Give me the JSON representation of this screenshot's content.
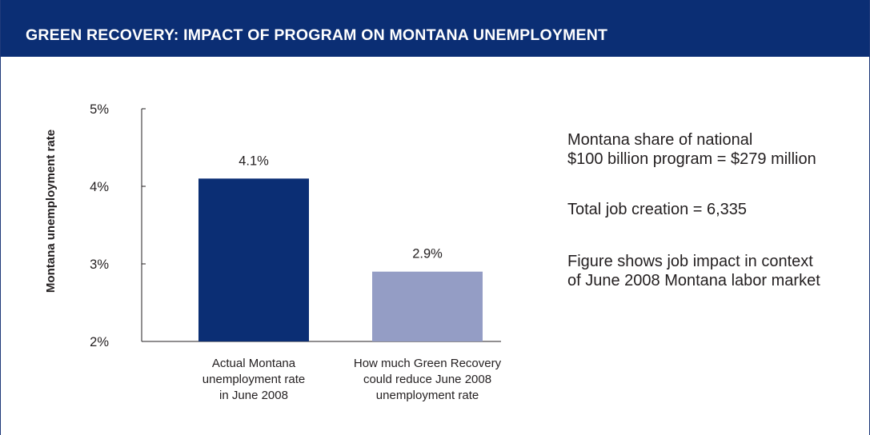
{
  "header": {
    "title": "GREEN RECOVERY: IMPACT OF PROGRAM ON MONTANA UNEMPLOYMENT"
  },
  "colors": {
    "header_bg": "#0b2e74",
    "bar_actual": "#0b2e74",
    "bar_reduced": "#949dc5"
  },
  "chart_data": {
    "type": "bar",
    "title": "",
    "xlabel": "",
    "ylabel": "Montana unemployment rate",
    "ylim": [
      2,
      5
    ],
    "yticks": [
      "2%",
      "3%",
      "4%",
      "5%"
    ],
    "grid": false,
    "categories": [
      "Actual Montana\nunemployment rate\nin June 2008",
      "How much Green Recovery\ncould reduce June 2008\nunemployment rate"
    ],
    "values": [
      4.1,
      2.9
    ],
    "data_labels": [
      "4.1%",
      "2.9%"
    ]
  },
  "notes": {
    "line1": "Montana share of national\n$100 billion program = $279 million",
    "line2": "Total job creation = 6,335",
    "line3": "Figure shows job impact in context\nof June 2008 Montana labor market"
  }
}
